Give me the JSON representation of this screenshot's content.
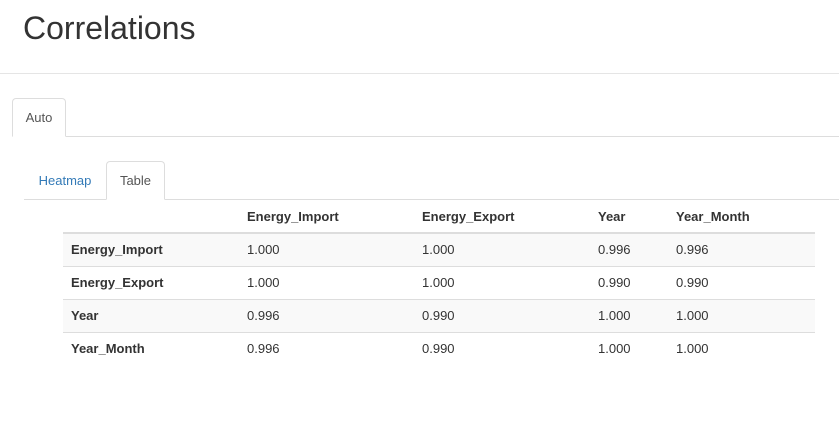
{
  "page": {
    "title": "Correlations"
  },
  "outer_tabs": [
    {
      "label": "Auto",
      "active": true
    }
  ],
  "inner_tabs": [
    {
      "label": "Heatmap",
      "active": false
    },
    {
      "label": "Table",
      "active": true
    }
  ],
  "table": {
    "columns": [
      "",
      "Energy_Import",
      "Energy_Export",
      "Year",
      "Year_Month"
    ],
    "rows": [
      {
        "label": "Energy_Import",
        "values": [
          "1.000",
          "1.000",
          "0.996",
          "0.996"
        ]
      },
      {
        "label": "Energy_Export",
        "values": [
          "1.000",
          "1.000",
          "0.990",
          "0.990"
        ]
      },
      {
        "label": "Year",
        "values": [
          "0.996",
          "0.990",
          "1.000",
          "1.000"
        ]
      },
      {
        "label": "Year_Month",
        "values": [
          "0.996",
          "0.990",
          "1.000",
          "1.000"
        ]
      }
    ]
  },
  "colors": {
    "link": "#337ab7",
    "border": "#dddddd",
    "stripe": "#f9f9f9",
    "text": "#333333"
  }
}
